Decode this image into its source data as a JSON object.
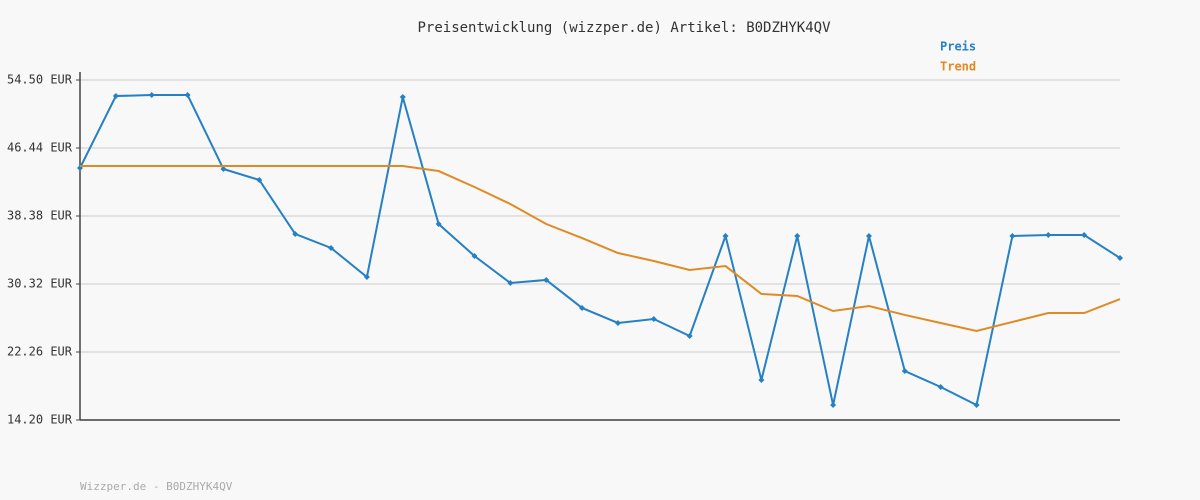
{
  "chart_data": {
    "type": "line",
    "title": "Preisentwicklung (wizzper.de) Artikel: B0DZHYK4QV",
    "footer": "Wizzper.de - B0DZHYK4QV",
    "categories": [
      null,
      null,
      null,
      null,
      null,
      null,
      null,
      null,
      null,
      null,
      null,
      null,
      null,
      null,
      null,
      null,
      null,
      null,
      null,
      null,
      null,
      null,
      null,
      null,
      null,
      null,
      null,
      null,
      null,
      null
    ],
    "series": [
      {
        "name": "Preis",
        "color": "#2581c4",
        "markers": true,
        "values": [
          44.07,
          52.6,
          52.72,
          52.72,
          43.95,
          42.65,
          36.25,
          34.59,
          31.15,
          52.48,
          37.43,
          33.64,
          30.44,
          30.8,
          27.48,
          25.7,
          26.17,
          24.16,
          36.01,
          18.94,
          36.01,
          15.98,
          36.01,
          20.01,
          18.11,
          15.98,
          36.01,
          36.13,
          36.13,
          33.4
        ]
      },
      {
        "name": "Trend",
        "color": "#e08a24",
        "markers": false,
        "values": [
          44.31,
          44.31,
          44.31,
          44.31,
          44.31,
          44.31,
          44.31,
          44.31,
          44.31,
          44.31,
          43.71,
          41.82,
          39.8,
          37.43,
          35.77,
          33.99,
          33.05,
          31.98,
          32.45,
          29.14,
          28.9,
          27.12,
          27.71,
          26.65,
          25.7,
          24.75,
          25.82,
          26.88,
          26.88,
          28.54
        ]
      }
    ],
    "ylim": [
      14.2,
      54.5
    ],
    "yticks": [
      {
        "value": 14.2,
        "label": "14.20 EUR"
      },
      {
        "value": 22.26,
        "label": "22.26 EUR"
      },
      {
        "value": 30.32,
        "label": "30.32 EUR"
      },
      {
        "value": 38.38,
        "label": "38.38 EUR"
      },
      {
        "value": 46.44,
        "label": "46.44 EUR"
      },
      {
        "value": 54.5,
        "label": "54.50 EUR"
      }
    ],
    "grid": true
  }
}
